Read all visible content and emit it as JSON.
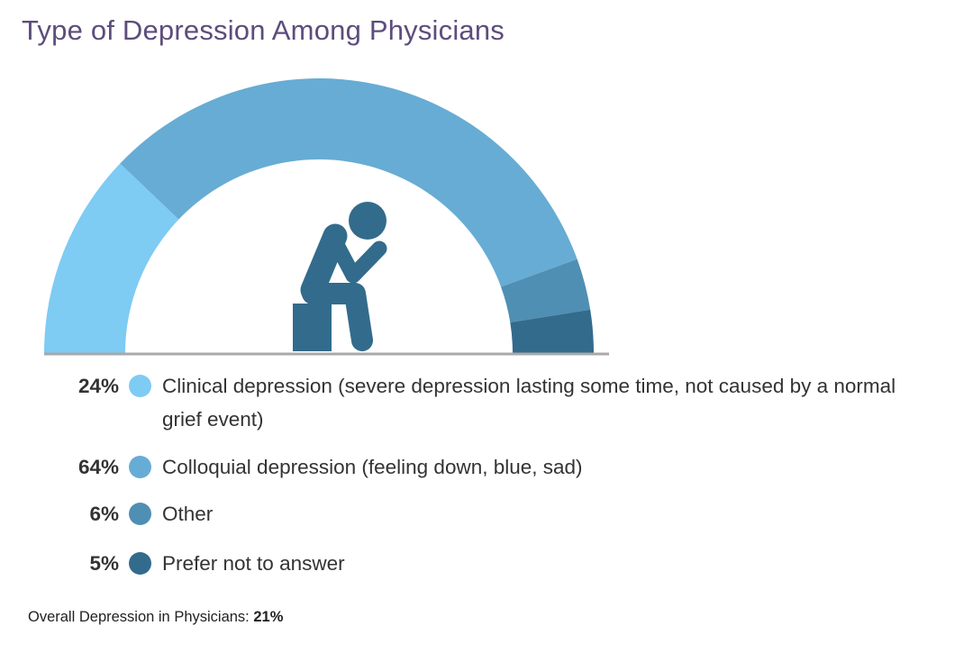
{
  "chart_data": {
    "type": "pie",
    "variant": "half-donut",
    "title": "Type of Depression Among Physicians",
    "categories": [
      "Clinical depression (severe depression lasting some time, not caused by a normal grief event)",
      "Colloquial depression (feeling down, blue, sad)",
      "Other",
      "Prefer not to answer"
    ],
    "values": [
      24,
      64,
      6,
      5
    ],
    "value_labels": [
      "24%",
      "64%",
      "6%",
      "5%"
    ],
    "colors": [
      "#7ecbf3",
      "#67acd4",
      "#4f8fb3",
      "#336b8c"
    ],
    "center_icon": "sad-person-sitting-icon",
    "legend_placement": "bottom"
  },
  "footer": {
    "label": "Overall Depression in Physicians:",
    "value": "21%"
  }
}
